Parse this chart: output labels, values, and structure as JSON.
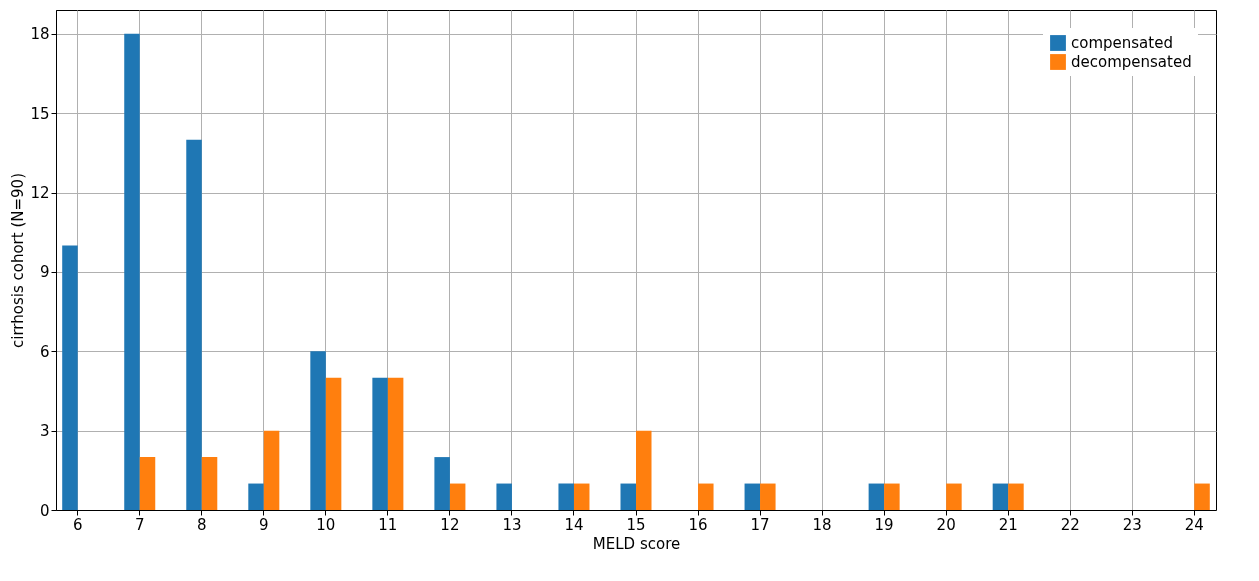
{
  "chart_data": {
    "type": "bar",
    "xlabel": "MELD score",
    "ylabel": "cirrhosis cohort (N=90)",
    "categories": [
      "6",
      "7",
      "8",
      "9",
      "10",
      "11",
      "12",
      "13",
      "14",
      "15",
      "16",
      "17",
      "18",
      "19",
      "20",
      "21",
      "22",
      "23",
      "24"
    ],
    "series": [
      {
        "name": "compensated",
        "color": "#1f77b4",
        "values": [
          10,
          18,
          14,
          1,
          6,
          5,
          2,
          1,
          1,
          1,
          0,
          1,
          0,
          1,
          0,
          1,
          0,
          0,
          0
        ]
      },
      {
        "name": "decompensated",
        "color": "#ff7f0e",
        "values": [
          0,
          2,
          2,
          3,
          5,
          5,
          1,
          0,
          1,
          3,
          1,
          1,
          0,
          1,
          1,
          1,
          0,
          0,
          1
        ]
      }
    ],
    "ylim": [
      0,
      18.9
    ],
    "yticks": [
      0,
      3,
      6,
      9,
      12,
      15,
      18
    ],
    "grid": true,
    "legend": "top right"
  }
}
